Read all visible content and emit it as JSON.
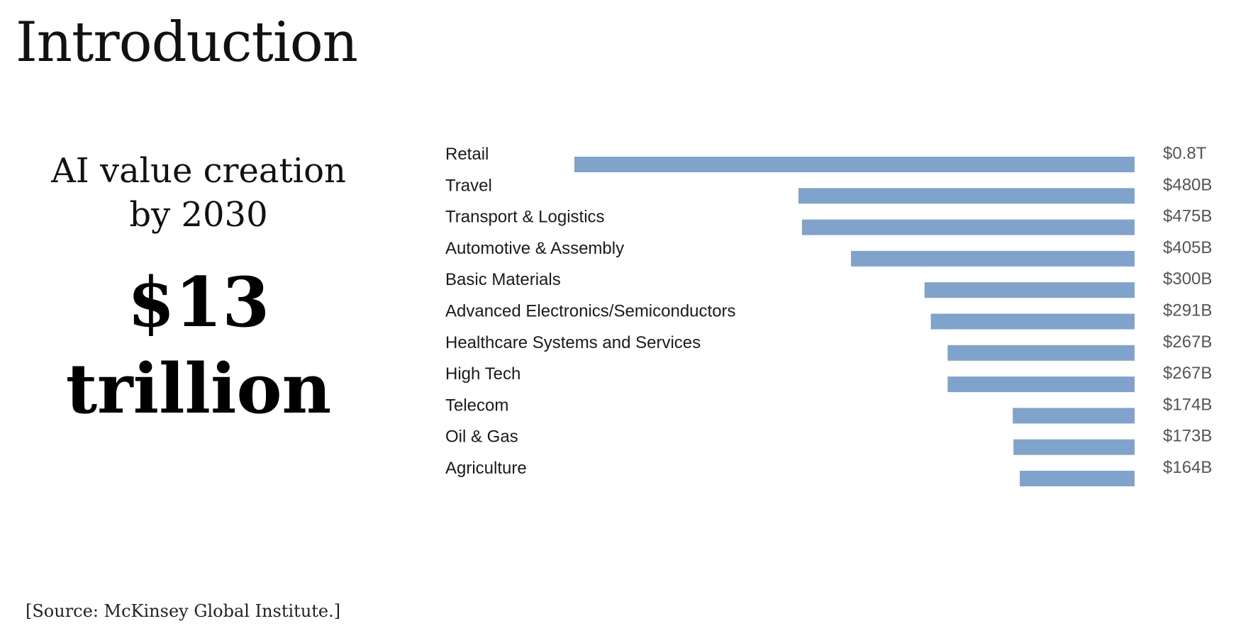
{
  "slide": {
    "title": "Introduction",
    "headline_line1": "AI value creation",
    "headline_line2": "by 2030",
    "big_number_line1": "$13",
    "big_number_line2": "trillion",
    "source": "[Source: McKinsey Global Institute.]"
  },
  "chart_data": {
    "type": "bar",
    "orientation": "horizontal",
    "bar_color": "#7fa3cb",
    "unit": "USD",
    "categories": [
      "Retail",
      "Travel",
      "Transport & Logistics",
      "Automotive & Assembly",
      "Basic Materials",
      "Advanced Electronics/Semiconductors",
      "Healthcare Systems and Services",
      "High Tech",
      "Telecom",
      "Oil & Gas",
      "Agriculture"
    ],
    "values": [
      800,
      480,
      475,
      405,
      300,
      291,
      267,
      267,
      174,
      173,
      164
    ],
    "value_labels": [
      "$0.8T",
      "$480B",
      "$475B",
      "$405B",
      "$300B",
      "$291B",
      "$267B",
      "$267B",
      "$174B",
      "$173B",
      "$164B"
    ],
    "xlim": [
      0,
      800
    ],
    "grid": false,
    "legend": "none"
  }
}
